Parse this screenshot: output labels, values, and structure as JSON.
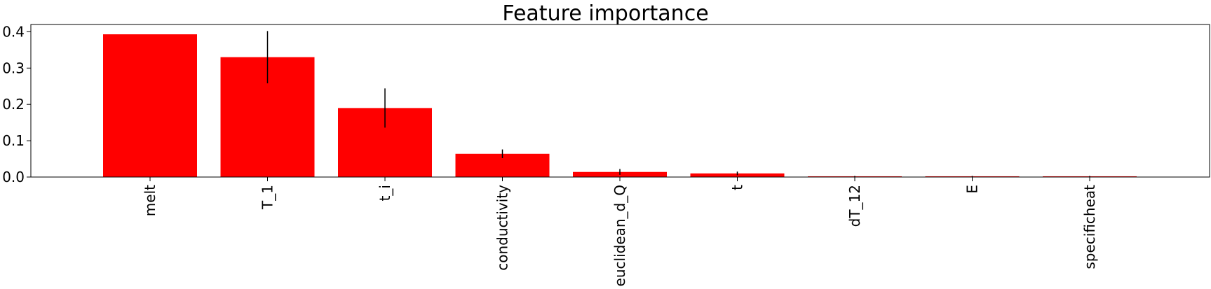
{
  "chart_data": {
    "type": "bar",
    "title": "Feature importance",
    "xlabel": "",
    "ylabel": "",
    "categories": [
      "melt",
      "T_1",
      "t_i",
      "conductivity",
      "euclidean_d_Q",
      "t",
      "dT_12",
      "E",
      "specificheat"
    ],
    "values": [
      0.393,
      0.33,
      0.19,
      0.064,
      0.014,
      0.01,
      0.002,
      0.002,
      0.002
    ],
    "errors": [
      0.0,
      0.072,
      0.054,
      0.012,
      0.008,
      0.005,
      0.001,
      0.001,
      0.001
    ],
    "ylim": [
      0,
      0.42
    ],
    "yticks": [
      "0.0",
      "0.1",
      "0.2",
      "0.3",
      "0.4"
    ],
    "bar_color": "#ff0000",
    "grid": false
  }
}
